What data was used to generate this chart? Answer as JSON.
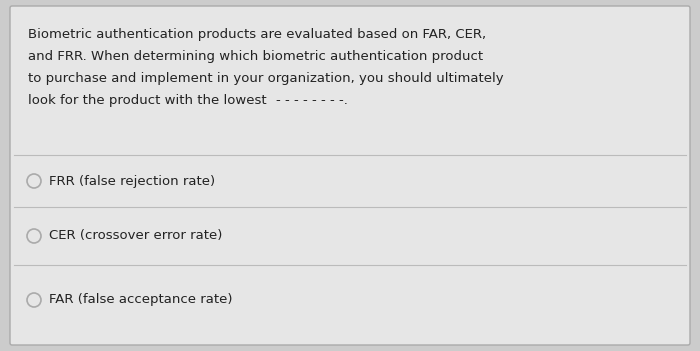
{
  "background_color": "#cccccc",
  "card_color": "#e6e6e6",
  "text_color": "#222222",
  "line_color": "#bbbbbb",
  "circle_edge_color": "#aaaaaa",
  "paragraph_lines": [
    "Biometric authentication products are evaluated based on FAR, CER,",
    "and FRR. When determining which biometric authentication product",
    "to purchase and implement in your organization, you should ultimately",
    "look for the product with the lowest"
  ],
  "blank_suffix": " ________.",
  "options": [
    "FRR (false rejection rate)",
    "CER (crossover error rate)",
    "FAR (false acceptance rate)"
  ],
  "font_size_para": 9.5,
  "font_size_option": 9.5
}
